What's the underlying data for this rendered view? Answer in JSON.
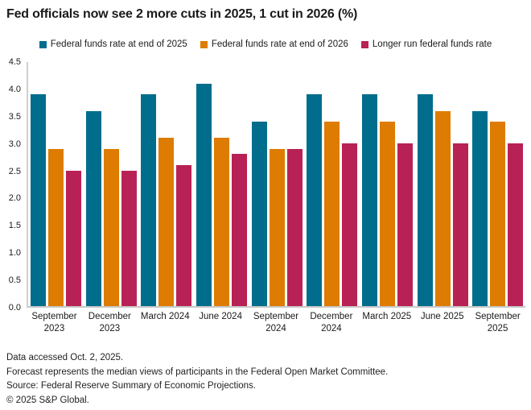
{
  "title": "Fed officials now see 2 more cuts in 2025, 1 cut in 2026 (%)",
  "colors": {
    "series_2025": "#006d8c",
    "series_2026": "#dd7c00",
    "series_longer_run": "#b82155",
    "axis_line": "#c8c8c8",
    "text": "#1a1a1a"
  },
  "chart_data": {
    "type": "bar",
    "categories": [
      "September 2023",
      "December 2023",
      "March 2024",
      "June 2024",
      "September 2024",
      "December 2024",
      "March 2025",
      "June 2025",
      "September 2025"
    ],
    "series": [
      {
        "name": "Federal funds rate at end of 2025",
        "color": "#006d8c",
        "values": [
          3.9,
          3.6,
          3.9,
          4.1,
          3.4,
          3.9,
          3.9,
          3.9,
          3.6
        ]
      },
      {
        "name": "Federal funds rate at end of 2026",
        "color": "#dd7c00",
        "values": [
          2.9,
          2.9,
          3.1,
          3.1,
          2.9,
          3.4,
          3.4,
          3.6,
          3.4
        ]
      },
      {
        "name": "Longer run federal funds rate",
        "color": "#b82155",
        "values": [
          2.5,
          2.5,
          2.6,
          2.8,
          2.9,
          3.0,
          3.0,
          3.0,
          3.0
        ]
      }
    ],
    "title": "Fed officials now see 2 more cuts in 2025, 1 cut in 2026 (%)",
    "xlabel": "",
    "ylabel": "",
    "ylim": [
      0,
      4.5
    ],
    "ytick_step": 0.5,
    "grid": false,
    "legend_position": "top"
  },
  "footer": {
    "lines": [
      "Data accessed Oct. 2, 2025.",
      "Forecast represents the median views of participants in the Federal Open Market Committee.",
      "Source: Federal Reserve Summary of Economic Projections.",
      "© 2025 S&P Global."
    ]
  }
}
